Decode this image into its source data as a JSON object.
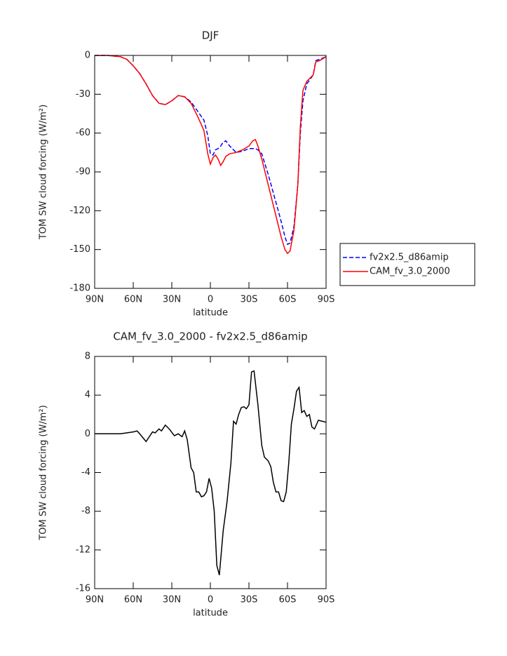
{
  "chart_data": [
    {
      "type": "line",
      "title": "DJF",
      "x_label": "latitude",
      "y_label": "TOM SW cloud forcing (W/m²)",
      "x": [
        90,
        80,
        70,
        65,
        60,
        55,
        50,
        45,
        40,
        35,
        30,
        25,
        20,
        15,
        10,
        5,
        2,
        0,
        -2,
        -4,
        -6,
        -8,
        -10,
        -12,
        -15,
        -20,
        -25,
        -30,
        -33,
        -35,
        -37,
        -40,
        -45,
        -50,
        -55,
        -58,
        -60,
        -62,
        -65,
        -68,
        -70,
        -72,
        -75,
        -80,
        -82,
        -85,
        -90
      ],
      "series": [
        {
          "name": "fv2x2.5_d86amip",
          "color": "#0000ff",
          "line_style": "dashed",
          "values": [
            0,
            0,
            -1,
            -3,
            -8,
            -14,
            -22,
            -31,
            -37,
            -38,
            -35,
            -31,
            -32,
            -36,
            -43,
            -50,
            -62,
            -76,
            -77,
            -73,
            -72,
            -70,
            -67,
            -66,
            -70,
            -75,
            -74,
            -72,
            -72,
            -72,
            -73,
            -76,
            -92,
            -110,
            -128,
            -140,
            -146,
            -145,
            -132,
            -100,
            -60,
            -35,
            -22,
            -15,
            -4,
            -3,
            -1
          ]
        },
        {
          "name": "CAM_fv_3.0_2000",
          "color": "#ff0000",
          "line_style": "solid",
          "values": [
            0,
            0,
            -1,
            -3,
            -8,
            -14,
            -22,
            -31,
            -37,
            -38,
            -35,
            -31,
            -32,
            -37,
            -47,
            -58,
            -76,
            -84,
            -79,
            -77,
            -80,
            -85,
            -82,
            -78,
            -76,
            -75,
            -73,
            -70,
            -66,
            -65,
            -70,
            -80,
            -100,
            -120,
            -140,
            -150,
            -153,
            -151,
            -135,
            -100,
            -55,
            -27,
            -20,
            -15,
            -5,
            -4,
            -1
          ]
        }
      ],
      "xlim": [
        90,
        -90
      ],
      "xticks": [
        {
          "value": 90,
          "label": "90N"
        },
        {
          "value": 60,
          "label": "60N"
        },
        {
          "value": 30,
          "label": "30N"
        },
        0,
        {
          "value": -30,
          "label": "30S"
        },
        {
          "value": -60,
          "label": "60S"
        },
        {
          "value": -90,
          "label": "90S"
        }
      ],
      "ylim": [
        -180,
        0
      ],
      "yticks": [
        0,
        -30,
        -60,
        -90,
        -120,
        -150,
        -180
      ],
      "legend": "right"
    },
    {
      "type": "line",
      "title": "CAM_fv_3.0_2000 - fv2x2.5_d86amip",
      "x_label": "latitude",
      "y_label": "TOM SW cloud forcing (W/m²)",
      "x": [
        90,
        70,
        60,
        57,
        55,
        50,
        45,
        43,
        40,
        38,
        35,
        32,
        28,
        25,
        22,
        20,
        18,
        15,
        13,
        11,
        9,
        7,
        5,
        3,
        1,
        -1,
        -3,
        -5,
        -7,
        -10,
        -13,
        -16,
        -18,
        -20,
        -22,
        -24,
        -26,
        -28,
        -30,
        -32,
        -34,
        -37,
        -40,
        -42,
        -45,
        -47,
        -49,
        -51,
        -53,
        -55,
        -57,
        -59,
        -61,
        -63,
        -65,
        -67,
        -69,
        -71,
        -73,
        -75,
        -77,
        -79,
        -81,
        -84,
        -87,
        -90
      ],
      "values": [
        0,
        0,
        0.2,
        0.3,
        0,
        -0.8,
        0.2,
        0.1,
        0.5,
        0.3,
        0.9,
        0.5,
        -0.2,
        0,
        -0.3,
        0.3,
        -0.6,
        -3.5,
        -4,
        -6,
        -6,
        -6.5,
        -6.4,
        -6,
        -4.6,
        -5.6,
        -8,
        -13.6,
        -14.6,
        -10,
        -7,
        -3,
        1.3,
        1,
        2,
        2.7,
        2.8,
        2.6,
        3,
        6.4,
        6.5,
        3,
        -1.2,
        -2.4,
        -2.8,
        -3.4,
        -5,
        -6,
        -6,
        -6.9,
        -7,
        -6,
        -3,
        1,
        2.6,
        4.4,
        4.8,
        2.2,
        2.4,
        1.8,
        2,
        0.7,
        0.5,
        1.4,
        1.3,
        1.2
      ],
      "color": "#000000",
      "xlim": [
        90,
        -90
      ],
      "xticks": [
        {
          "value": 90,
          "label": "90N"
        },
        {
          "value": 60,
          "label": "60N"
        },
        {
          "value": 30,
          "label": "30N"
        },
        0,
        {
          "value": -30,
          "label": "30S"
        },
        {
          "value": -60,
          "label": "60S"
        },
        {
          "value": -90,
          "label": "90S"
        }
      ],
      "ylim": [
        -16,
        8
      ],
      "yticks": [
        8,
        4,
        0,
        -4,
        -8,
        -12,
        -16
      ]
    }
  ]
}
